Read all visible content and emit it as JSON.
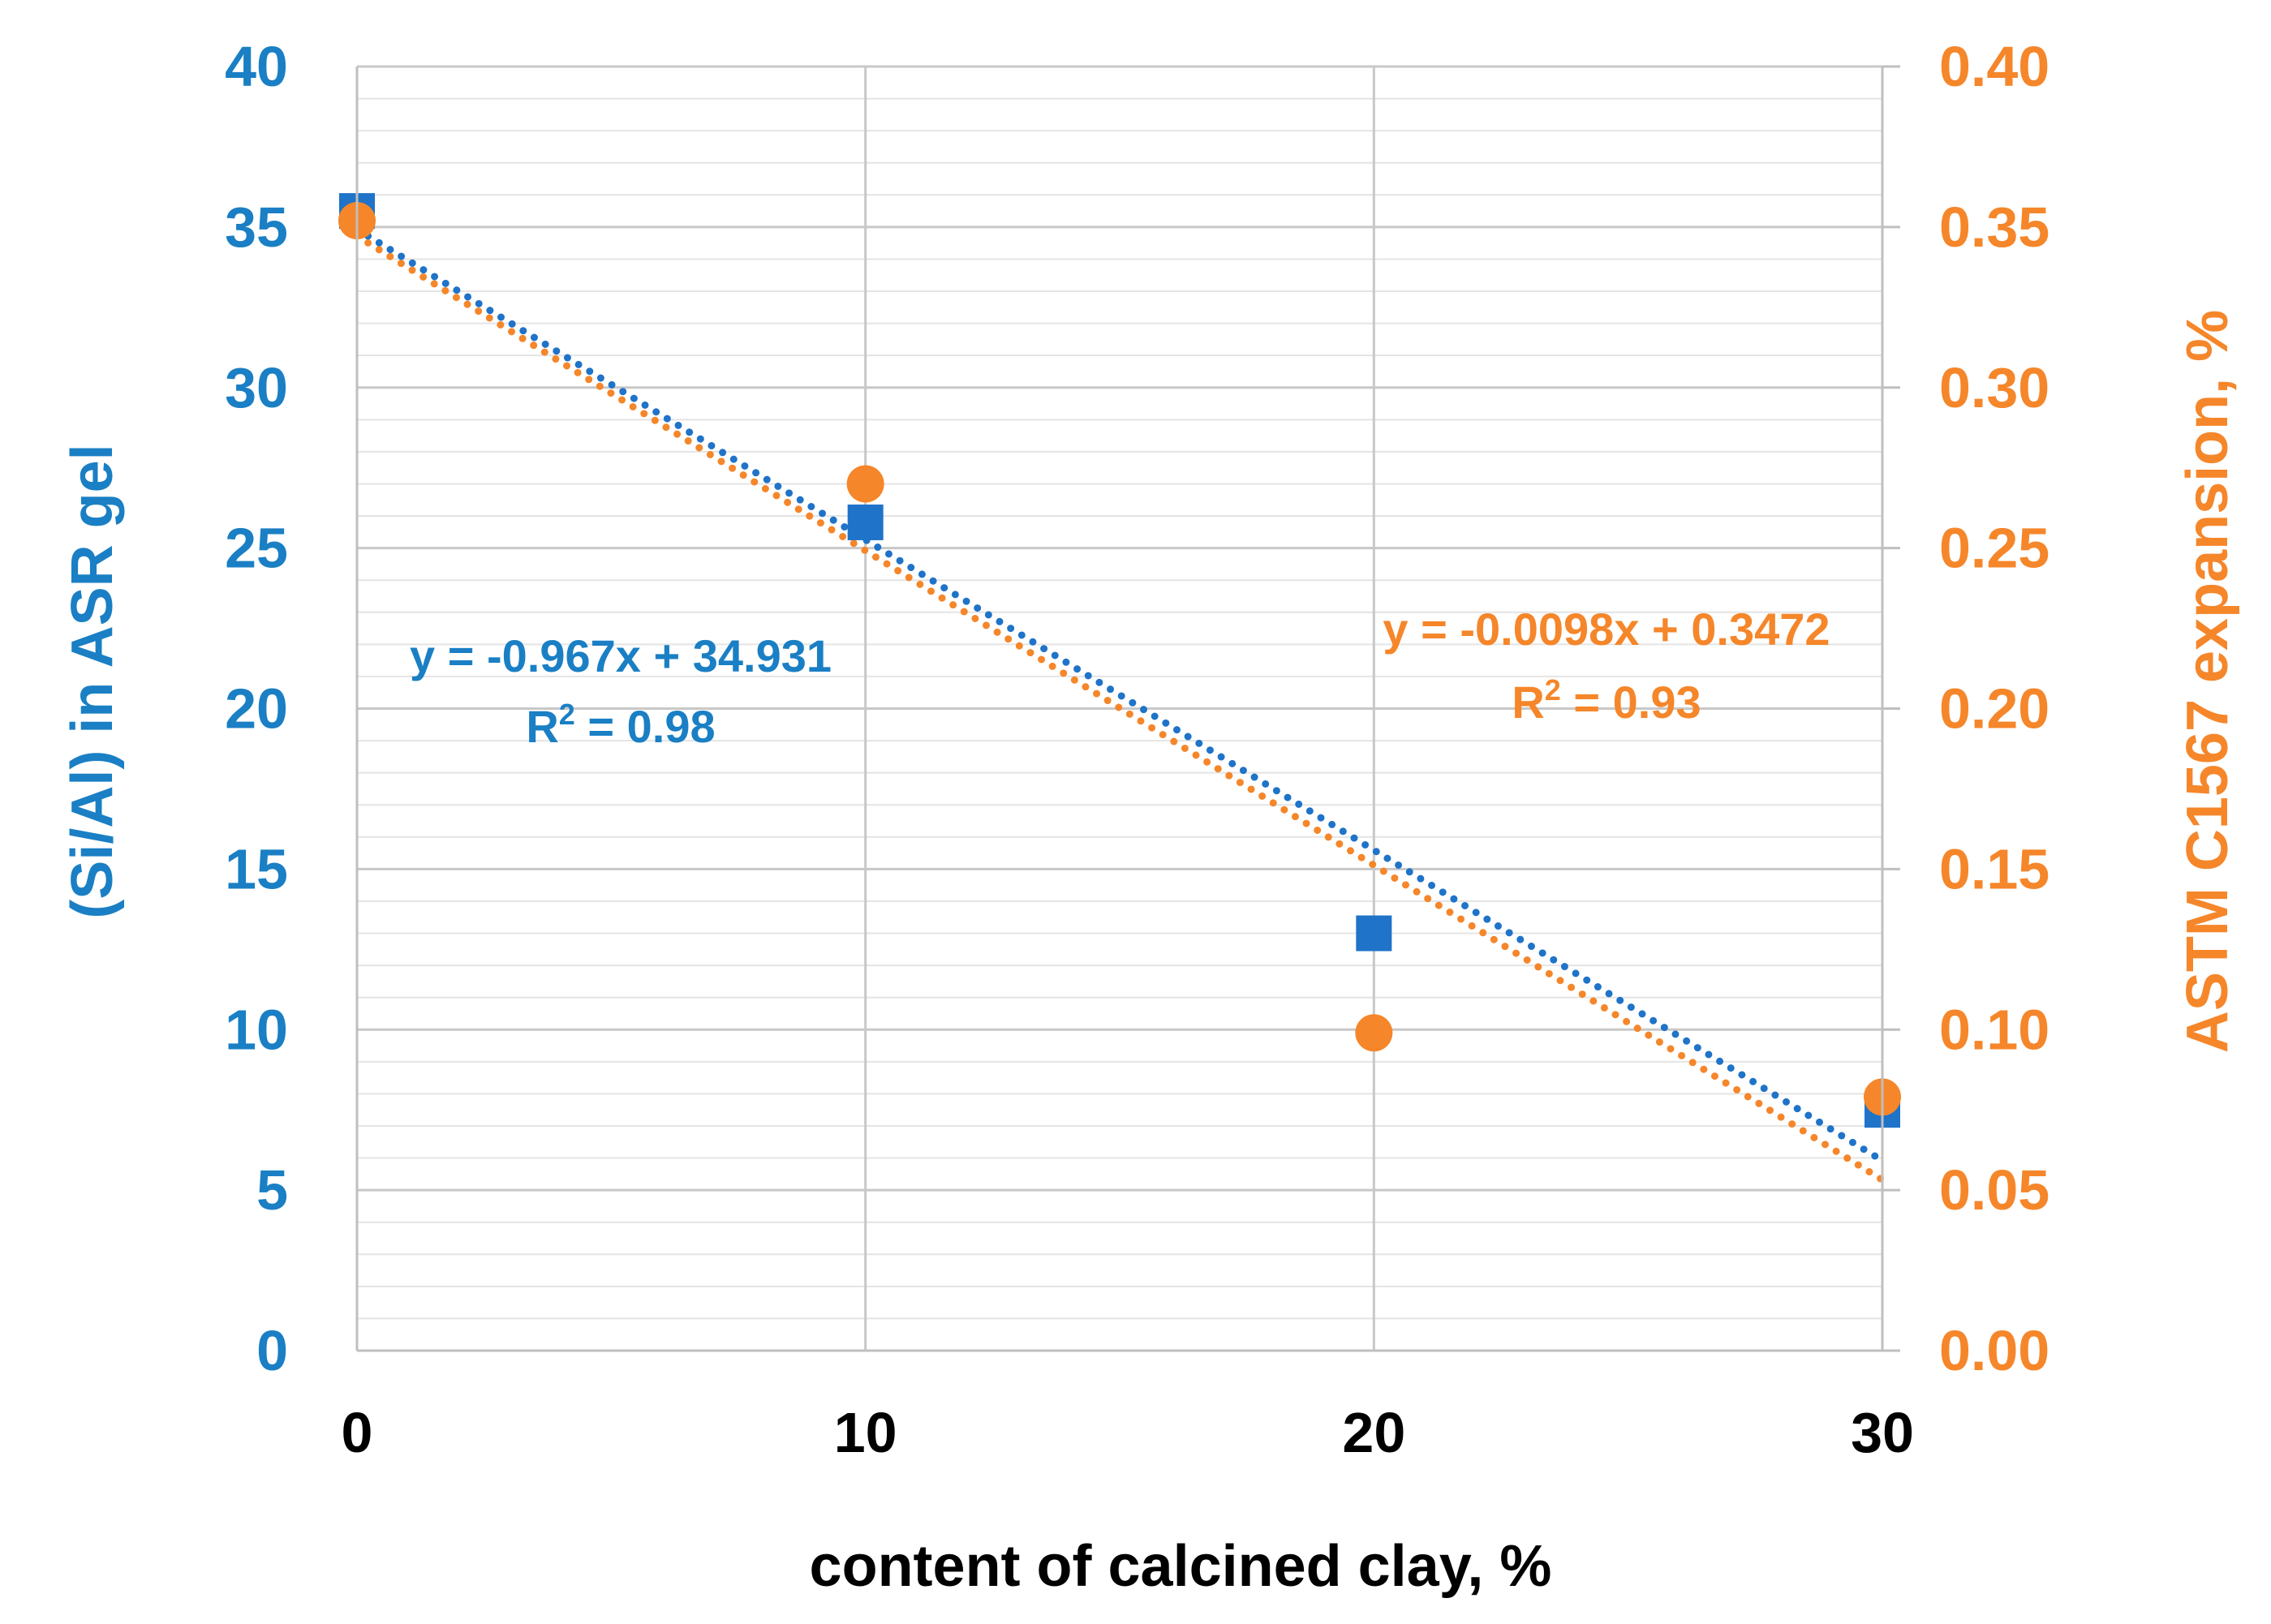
{
  "colors": {
    "left_series": "#1f73c8",
    "right_series": "#f5862a",
    "left_tick_text": "#1a7fc4",
    "right_tick_text": "#f5862a",
    "x_tick_text": "#000000",
    "grid_major": "#c8c8c8",
    "grid_minor": "#e4e4e4"
  },
  "chart_data": {
    "type": "scatter",
    "xlabel": "content of calcined clay, %",
    "ylabel_left": "(Si/Al) in ASR gel",
    "ylabel_right": "ASTM C1567 expansion, %",
    "xlim": [
      0,
      30
    ],
    "x_ticks": [
      "0",
      "10",
      "20",
      "30"
    ],
    "ylim_left": [
      0,
      40
    ],
    "y_ticks_left": [
      "0",
      "5",
      "10",
      "15",
      "20",
      "25",
      "30",
      "35",
      "40"
    ],
    "ylim_right": [
      0,
      0.4
    ],
    "y_ticks_right": [
      "0.00",
      "0.05",
      "0.10",
      "0.15",
      "0.20",
      "0.25",
      "0.30",
      "0.35",
      "0.40"
    ],
    "grid": true,
    "series": [
      {
        "name": "(Si/Al) in ASR gel",
        "axis": "left",
        "marker": "square",
        "x": [
          0,
          10,
          20,
          30
        ],
        "y": [
          35.5,
          25.8,
          13.0,
          7.5
        ],
        "trendline": {
          "slope": -0.967,
          "intercept": 34.931,
          "equation": "y = -0.967x + 34.931",
          "r2_label": "R",
          "r2_sup": "2",
          "r2_value": " = 0.98"
        }
      },
      {
        "name": "ASTM C1567 expansion, %",
        "axis": "right",
        "marker": "circle",
        "x": [
          0,
          10,
          20,
          30
        ],
        "y": [
          0.352,
          0.27,
          0.099,
          0.079
        ],
        "trendline": {
          "slope": -0.0098,
          "intercept": 0.3472,
          "equation": "y = -0.0098x + 0.3472",
          "r2_label": "R",
          "r2_sup": "2",
          "r2_value": " = 0.93"
        }
      }
    ]
  }
}
